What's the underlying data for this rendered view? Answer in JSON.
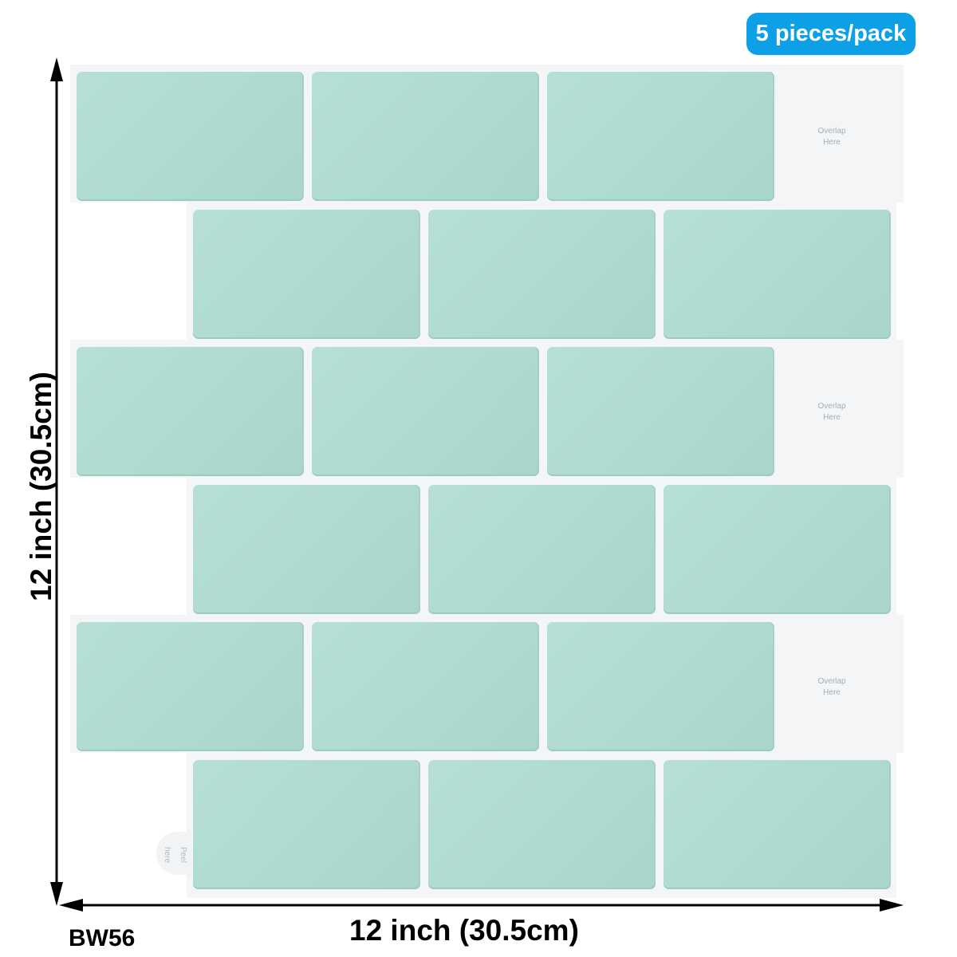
{
  "badge": {
    "label": "5 pieces/pack",
    "color": "#0ea0e6"
  },
  "product_code": "BW56",
  "dimensions": {
    "height": "12 inch (30.5cm)",
    "width": "12 inch (30.5cm)"
  },
  "tile": {
    "color": "#b3ddd3",
    "rows": 6,
    "tiles_per_row": 3
  },
  "overlap_label": {
    "line1": "Overlap",
    "line2": "Here"
  },
  "peel_label": {
    "line1": "Peel",
    "line2": "here"
  }
}
